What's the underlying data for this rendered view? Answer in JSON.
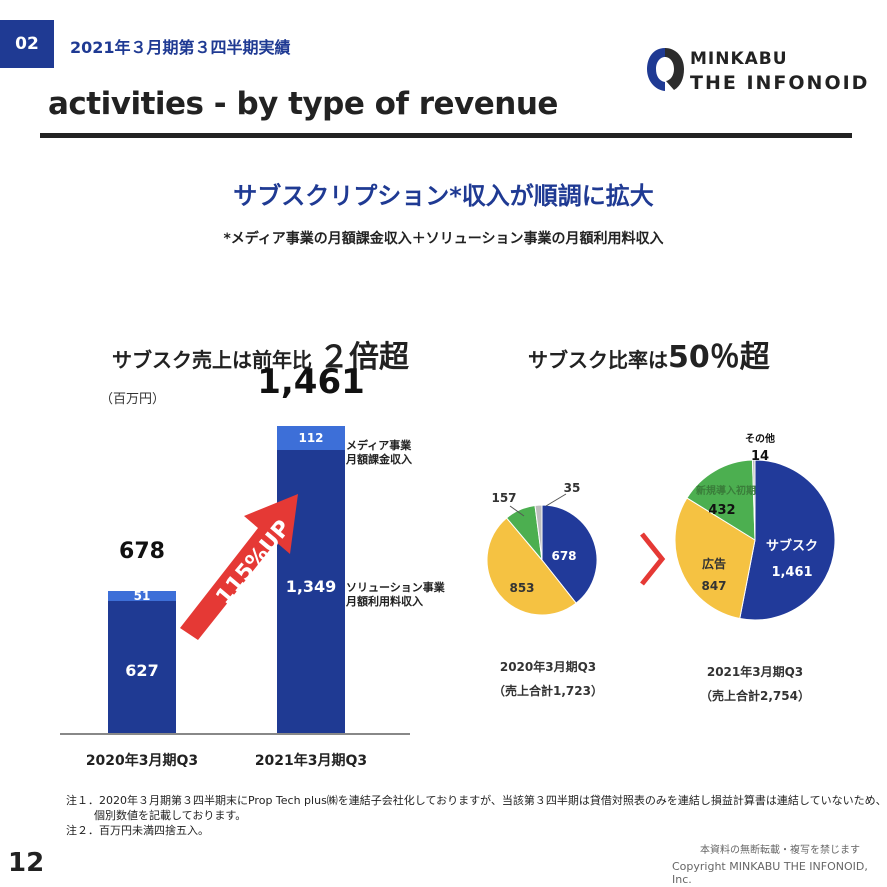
{
  "header": {
    "section_number": "02",
    "section_title": "2021年３月期第３四半期実績",
    "page_title": "activities - by type of revenue",
    "logo_line1": "MINKABU",
    "logo_line2": "THE INFONOID",
    "brand_color": "#1f3a93"
  },
  "headline": "サブスクリプション*収入が順調に拡大",
  "subheadline": "*メディア事業の月額課金収入＋ソリューション事業の月額利用料収入",
  "left_panel": {
    "title_prefix": "サブスク売上は前年比",
    "title_emphasis": "２倍超",
    "unit": "（百万円）",
    "growth_label": "115%UP",
    "legend_media": [
      "メディア事業",
      "月額課金収入"
    ],
    "legend_solution": [
      "ソリューション事業",
      "月額利用料収入"
    ]
  },
  "right_panel": {
    "title_prefix": "サブスク比率は",
    "title_emphasis": "50％超",
    "pie1_caption": [
      "2020年3月期Q3",
      "（売上合計1,723）"
    ],
    "pie2_caption": [
      "2021年3月期Q3",
      "（売上合計2,754）"
    ],
    "pie2_labels": {
      "sub": "サブスク",
      "ad": "広告",
      "new": "新規導入初期",
      "other": "その他"
    }
  },
  "chart_data": [
    {
      "type": "bar",
      "stacked": true,
      "categories": [
        "2020年3月期Q3",
        "2021年3月期Q3"
      ],
      "series": [
        {
          "name": "ソリューション事業 月額利用料収入",
          "values": [
            627,
            1349
          ],
          "color": "#1f3a93"
        },
        {
          "name": "メディア事業 月額課金収入",
          "values": [
            51,
            112
          ],
          "color": "#3d6fd8"
        }
      ],
      "totals": [
        "678",
        "1,461"
      ],
      "value_labels": {
        "solution": [
          "627",
          "1,349"
        ],
        "media": [
          "51",
          "112"
        ]
      },
      "ylabel": "（百万円）",
      "ylim": [
        0,
        1600
      ]
    },
    {
      "type": "pie",
      "title": "2020年3月期Q3",
      "slices": [
        {
          "name": "サブスク",
          "value": 678,
          "label": "678",
          "color": "#213a9a"
        },
        {
          "name": "広告",
          "value": 853,
          "label": "853",
          "color": "#f5c242"
        },
        {
          "name": "新規導入初期",
          "value": 157,
          "label": "157",
          "color": "#4caf50"
        },
        {
          "name": "その他",
          "value": 35,
          "label": "35",
          "color": "#bdbdbd"
        }
      ],
      "total": "1,723"
    },
    {
      "type": "pie",
      "title": "2021年3月期Q3",
      "slices": [
        {
          "name": "サブスク",
          "value": 1461,
          "label": "1,461",
          "color": "#213a9a"
        },
        {
          "name": "広告",
          "value": 847,
          "label": "847",
          "color": "#f5c242"
        },
        {
          "name": "新規導入初期",
          "value": 432,
          "label": "432",
          "color": "#4caf50"
        },
        {
          "name": "その他",
          "value": 14,
          "label": "14",
          "color": "#bdbdbd"
        }
      ],
      "total": "2,754"
    }
  ],
  "notes": [
    "注１．2020年３月期第３四半期末にProp Tech plus㈱を連結子会社化しておりますが、当該第３四半期は貸借対照表のみを連結し損益計算書は連結していないため、",
    "個別数値を記載しております。",
    "注２．百万円未満四捨五入。"
  ],
  "footer": {
    "page_number": "12",
    "disclaimer": "本資料の無断転載・複写を禁じます",
    "copyright": "Copyright MINKABU THE INFONOID, Inc."
  }
}
